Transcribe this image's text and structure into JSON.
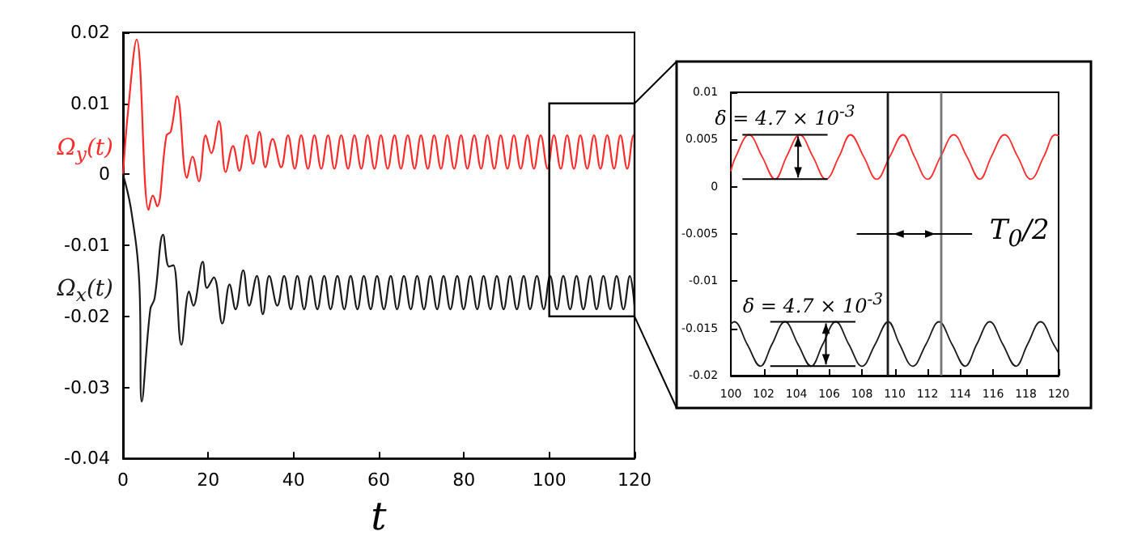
{
  "chart_data": [
    {
      "type": "line",
      "xlabel": "t",
      "xlim": [
        0,
        120
      ],
      "xticks": [
        0,
        20,
        40,
        60,
        80,
        100,
        120
      ],
      "ylim": [
        -0.04,
        0.02
      ],
      "yticks": [
        -0.04,
        -0.03,
        -0.02,
        -0.01,
        0,
        0.01,
        0.02
      ],
      "grid": false,
      "series": [
        {
          "name": "Ω$_{y}$(t)",
          "color": "#ff2a2a",
          "x": [
            0,
            1.2,
            3.2,
            6.0,
            7.0,
            8.0,
            10.2,
            11.2,
            12.7,
            15.0,
            16.3,
            17.8,
            19.4,
            20.7,
            22.5,
            24.1,
            25.8,
            27.3,
            29.0,
            30.5,
            32.0,
            33.4,
            35.1,
            37.1,
            38.7,
            40.3,
            41.8,
            43.4,
            44.9,
            46.5,
            48.1,
            49.6,
            51.2,
            52.8,
            54.3,
            55.9,
            57.4,
            59.0,
            60.5,
            62.1,
            63.7,
            65.2,
            66.8,
            68.4,
            69.9,
            71.5,
            73.0,
            74.6,
            76.1,
            77.7,
            79.3,
            80.8,
            82.4,
            84.0,
            85.5,
            87.1,
            88.6,
            90.2,
            91.7,
            93.3,
            94.9,
            96.4,
            98.0,
            99.6,
            101.1,
            102.7,
            104.2,
            105.8,
            107.3,
            108.9,
            110.5,
            112.0,
            113.6,
            115.2,
            116.7,
            118.3,
            119.8,
            120
          ],
          "values": [
            0,
            0.009,
            0.019,
            -0.005,
            -0.003,
            -0.0045,
            0.0055,
            0.006,
            0.011,
            -0.0005,
            0.0025,
            -0.001,
            0.0055,
            0.003,
            0.0075,
            0.0003,
            0.004,
            0.0005,
            0.0055,
            0.0015,
            0.006,
            0.001,
            0.005,
            0.001,
            0.0055,
            0.0008,
            0.0055,
            0.0008,
            0.0055,
            0.0008,
            0.0055,
            0.0008,
            0.0055,
            0.0008,
            0.0055,
            0.0008,
            0.0055,
            0.0008,
            0.0055,
            0.0008,
            0.0055,
            0.0008,
            0.0055,
            0.0008,
            0.0055,
            0.0008,
            0.0055,
            0.0008,
            0.0055,
            0.0008,
            0.0055,
            0.0008,
            0.0055,
            0.0008,
            0.0055,
            0.0008,
            0.0055,
            0.0008,
            0.0055,
            0.0008,
            0.0055,
            0.0008,
            0.0055,
            0.0008,
            0.0055,
            0.0008,
            0.0055,
            0.0008,
            0.0055,
            0.0008,
            0.0055,
            0.0008,
            0.0055,
            0.0008,
            0.0055,
            0.0008,
            0.0055,
            0.0054
          ]
        },
        {
          "name": "Ω$_{x}$(t)",
          "color": "#1a1a1a",
          "x": [
            0,
            1.9,
            3.8,
            4.4,
            6.4,
            7.4,
            9.4,
            10.8,
            11.8,
            13.7,
            15.5,
            16.5,
            18.7,
            19.7,
            21.3,
            23.3,
            25.0,
            26.4,
            28.2,
            29.6,
            31.4,
            32.8,
            34.3,
            36.2,
            37.8,
            39.4,
            40.9,
            42.5,
            44.0,
            45.6,
            47.2,
            48.7,
            50.3,
            51.9,
            53.4,
            55.0,
            56.5,
            58.1,
            59.6,
            61.2,
            62.8,
            64.3,
            65.9,
            67.5,
            69.0,
            70.6,
            72.1,
            73.7,
            75.2,
            76.8,
            78.4,
            79.9,
            81.5,
            83.1,
            84.6,
            86.2,
            87.7,
            89.3,
            90.8,
            92.4,
            94.0,
            95.5,
            97.1,
            98.7,
            100.2,
            101.8,
            103.3,
            104.9,
            106.4,
            108.0,
            109.6,
            111.1,
            112.7,
            114.3,
            115.8,
            117.4,
            118.9,
            120
          ],
          "values": [
            0,
            -0.005,
            -0.015,
            -0.032,
            -0.019,
            -0.0175,
            -0.0085,
            -0.013,
            -0.0128,
            -0.024,
            -0.0165,
            -0.0185,
            -0.0123,
            -0.016,
            -0.0145,
            -0.021,
            -0.0155,
            -0.019,
            -0.0135,
            -0.0185,
            -0.0143,
            -0.0197,
            -0.0143,
            -0.0185,
            -0.0143,
            -0.019,
            -0.0143,
            -0.019,
            -0.0143,
            -0.019,
            -0.0143,
            -0.019,
            -0.0143,
            -0.019,
            -0.0143,
            -0.019,
            -0.0143,
            -0.019,
            -0.0143,
            -0.019,
            -0.0143,
            -0.019,
            -0.0143,
            -0.019,
            -0.0143,
            -0.019,
            -0.0143,
            -0.019,
            -0.0143,
            -0.019,
            -0.0143,
            -0.019,
            -0.0143,
            -0.019,
            -0.0143,
            -0.019,
            -0.0143,
            -0.019,
            -0.0143,
            -0.019,
            -0.0143,
            -0.019,
            -0.0143,
            -0.019,
            -0.0143,
            -0.019,
            -0.0143,
            -0.019,
            -0.0143,
            -0.019,
            -0.0143,
            -0.019,
            -0.0143,
            -0.019,
            -0.0143,
            -0.019,
            -0.0143,
            -0.0185
          ]
        }
      ]
    },
    {
      "type": "line",
      "xlim": [
        100,
        120
      ],
      "xticks": [
        100,
        102,
        104,
        106,
        108,
        110,
        112,
        114,
        116,
        118,
        120
      ],
      "ylim": [
        -0.02,
        0.01
      ],
      "yticks": [
        -0.02,
        -0.015,
        -0.01,
        -0.005,
        0,
        0.005,
        0.01
      ],
      "grid": false,
      "series": [
        {
          "color": "#ff2a2a",
          "x": [
            100,
            100.3,
            101.1,
            101.9,
            102.7,
            103.4,
            104.2,
            105.0,
            105.8,
            106.6,
            107.3,
            108.1,
            108.9,
            109.7,
            110.5,
            111.2,
            112.0,
            112.8,
            113.6,
            114.4,
            115.2,
            115.9,
            116.7,
            117.5,
            118.3,
            119.1,
            119.8,
            120
          ],
          "values": [
            0.0017,
            0.0032,
            0.0055,
            0.0032,
            0.0008,
            0.0032,
            0.0055,
            0.0032,
            0.0008,
            0.0032,
            0.0055,
            0.0032,
            0.0008,
            0.0032,
            0.0055,
            0.0032,
            0.0008,
            0.0032,
            0.0055,
            0.0032,
            0.0008,
            0.0032,
            0.0055,
            0.0032,
            0.0008,
            0.0032,
            0.0055,
            0.0054
          ]
        },
        {
          "color": "#1a1a1a",
          "x": [
            100,
            100.2,
            101.0,
            101.8,
            102.5,
            103.3,
            104.1,
            104.9,
            105.6,
            106.4,
            107.2,
            108.0,
            108.8,
            109.6,
            110.3,
            111.1,
            111.9,
            112.7,
            113.5,
            114.3,
            115.0,
            115.8,
            116.6,
            117.4,
            118.1,
            118.9,
            119.7,
            120
          ],
          "values": [
            -0.0145,
            -0.0143,
            -0.0167,
            -0.019,
            -0.0167,
            -0.0143,
            -0.0167,
            -0.019,
            -0.0167,
            -0.0143,
            -0.0167,
            -0.019,
            -0.0167,
            -0.0143,
            -0.0167,
            -0.019,
            -0.0167,
            -0.0143,
            -0.0167,
            -0.019,
            -0.0167,
            -0.0143,
            -0.0167,
            -0.019,
            -0.0167,
            -0.0143,
            -0.0167,
            -0.0176
          ]
        }
      ],
      "ref_lines": [
        {
          "axis": "x",
          "value": 109.6,
          "color": "#1a1a1a"
        },
        {
          "axis": "x",
          "value": 112.8,
          "color": "#777777"
        }
      ],
      "annotations": [
        "δ = 4.7 × 10$^{-3}$",
        "δ = 4.7 × 10$^{-3}$",
        "T$_{0}$/2"
      ]
    }
  ]
}
